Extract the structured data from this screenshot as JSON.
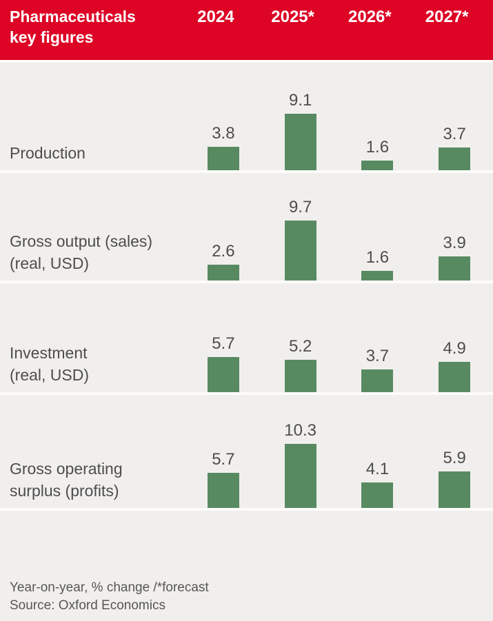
{
  "chart_data": {
    "type": "bar",
    "title": "Pharmaceuticals key figures",
    "categories": [
      "2024",
      "2025*",
      "2026*",
      "2027*"
    ],
    "series": [
      {
        "name": "Production",
        "values": [
          3.8,
          9.1,
          1.6,
          3.7
        ]
      },
      {
        "name": "Gross output (sales) (real, USD)",
        "values": [
          2.6,
          9.7,
          1.6,
          3.9
        ]
      },
      {
        "name": "Investment (real, USD)",
        "values": [
          5.7,
          5.2,
          3.7,
          4.9
        ]
      },
      {
        "name": "Gross operating surplus (profits)",
        "values": [
          5.7,
          10.3,
          4.1,
          5.9
        ]
      }
    ],
    "ylabel": "Year-on-year, % change",
    "ylim": [
      0,
      10.3
    ],
    "legend": "none",
    "grid": "off",
    "footnote": "Year-on-year, % change /*forecast",
    "source": "Source: Oxford Economics"
  },
  "display": {
    "title_lines": "Pharmaceuticals\nkey figures",
    "row_labels": [
      "Production",
      "Gross output (sales)\n(real, USD)",
      "Investment\n(real, USD)",
      "Gross operating\nsurplus (profits)"
    ],
    "footnote": "Year-on-year, % change /*forecast",
    "source": "Source: Oxford Economics"
  },
  "colors": {
    "header_background": "#dd0425",
    "header_text": "#ffffff",
    "bar": "#588a62",
    "background": "#f1efed",
    "text": "#4d4d4d",
    "separator": "#fdfcfa"
  }
}
